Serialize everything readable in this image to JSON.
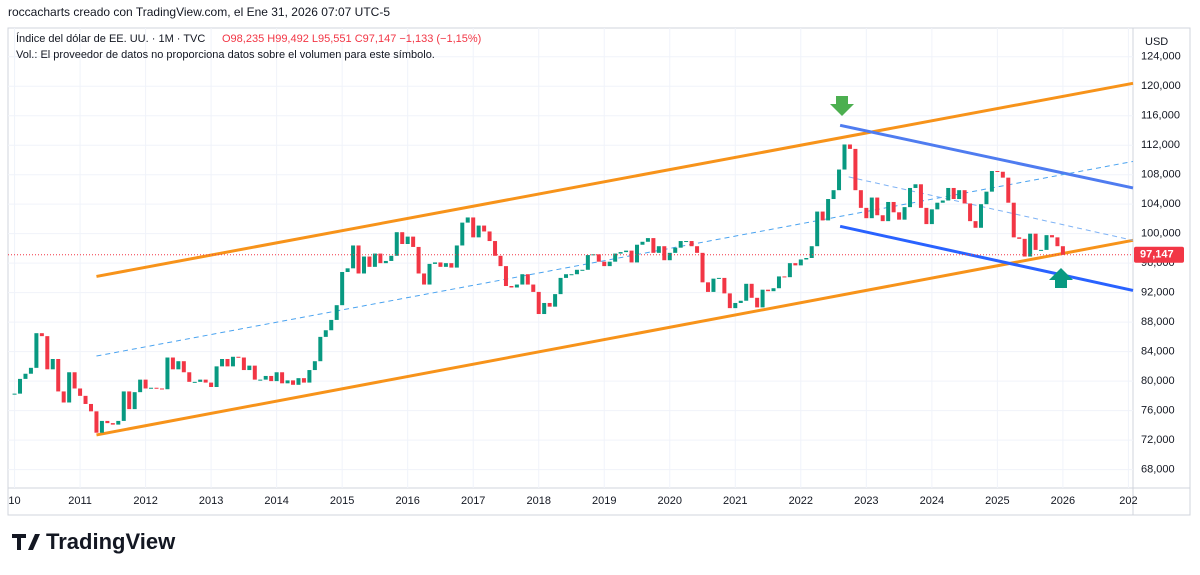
{
  "chart_data": {
    "type": "candlestick",
    "header": "roccacharts creado con TradingView.com, el Ene 31, 2026 07:07 UTC-5",
    "symbol": "Índice del dólar de EE. UU. · 1M · TVC",
    "ohlc_text": "O98,235 H99,492 L95,551 C97,147 −1,133 (−1,15%)",
    "volume_note": "Vol.: El proveedor de datos no proporciona datos sobre el volumen para este símbolo.",
    "currency": "USD",
    "brand": "TradingView",
    "last_price_label": "97,147",
    "up_color": "#089981",
    "down_color": "#f23645",
    "values": [
      78.3,
      80.3,
      81.0,
      81.8,
      86.5,
      86.1,
      81.6,
      83.0,
      78.6,
      77.1,
      81.2,
      79.0,
      78.0,
      76.9,
      75.9,
      73.0,
      74.6,
      74.3,
      74.1,
      74.6,
      78.6,
      76.2,
      78.5,
      80.2,
      79.0,
      79.1,
      79.0,
      78.9,
      83.2,
      81.6,
      82.7,
      81.2,
      79.9,
      79.9,
      80.2,
      79.8,
      79.2,
      82.0,
      83.0,
      82.0,
      83.3,
      83.2,
      81.5,
      82.1,
      80.2,
      80.2,
      80.7,
      80.0,
      81.2,
      79.7,
      80.1,
      79.5,
      80.4,
      79.8,
      81.5,
      82.7,
      86.0,
      86.9,
      88.3,
      90.3,
      94.8,
      95.3,
      98.4,
      94.6,
      96.9,
      95.5,
      97.3,
      96.0,
      96.3,
      97.0,
      100.2,
      98.6,
      99.6,
      98.2,
      94.6,
      93.1,
      95.9,
      96.1,
      95.5,
      96.0,
      95.4,
      98.4,
      101.5,
      102.2,
      99.5,
      101.1,
      100.3,
      99.0,
      97.0,
      95.6,
      92.9,
      92.7,
      93.1,
      94.5,
      93.1,
      92.1,
      89.1,
      90.6,
      90.1,
      91.8,
      94.0,
      94.5,
      94.5,
      95.1,
      95.1,
      97.1,
      97.2,
      96.2,
      95.6,
      96.2,
      97.3,
      97.5,
      97.7,
      96.1,
      98.5,
      98.9,
      99.4,
      97.4,
      98.3,
      96.4,
      97.4,
      98.1,
      99.0,
      99.0,
      98.3,
      97.4,
      93.4,
      92.1,
      93.9,
      94.0,
      91.9,
      89.9,
      90.6,
      90.9,
      93.2,
      91.3,
      90.0,
      92.4,
      92.2,
      92.6,
      94.2,
      94.1,
      96.0,
      95.7,
      96.5,
      96.7,
      98.3,
      103.0,
      101.8,
      104.7,
      105.9,
      108.7,
      112.1,
      111.5,
      105.9,
      103.5,
      102.1,
      104.9,
      102.5,
      101.7,
      104.3,
      102.9,
      101.9,
      103.6,
      106.2,
      106.7,
      103.5,
      101.3,
      103.3,
      104.2,
      104.5,
      106.2,
      104.7,
      105.9,
      104.1,
      101.7,
      100.8,
      104.0,
      105.7,
      108.5,
      108.4,
      107.6,
      104.2,
      99.5,
      99.3,
      96.9,
      100.0,
      97.8,
      97.8,
      99.8,
      99.5,
      98.3,
      97.147
    ],
    "xlim": [
      2009.9,
      2027.07
    ],
    "xticks": [
      {
        "value": 2010,
        "label": "10"
      },
      2011,
      2012,
      2013,
      2014,
      2015,
      2016,
      2017,
      2018,
      2019,
      2020,
      2021,
      2022,
      2023,
      2024,
      2025,
      2026,
      {
        "value": 2027,
        "label": "202"
      }
    ],
    "ylim": [
      65.5,
      127.9
    ],
    "yticks": [
      {
        "value": 68,
        "label": "68,000"
      },
      {
        "value": 72,
        "label": "72,000"
      },
      {
        "value": 76,
        "label": "76,000"
      },
      {
        "value": 80,
        "label": "80,000"
      },
      {
        "value": 84,
        "label": "84,000"
      },
      {
        "value": 88,
        "label": "88,000"
      },
      {
        "value": 92,
        "label": "92,000"
      },
      {
        "value": 96,
        "label": "96,000"
      },
      {
        "value": 100,
        "label": "100,000"
      },
      {
        "value": 104,
        "label": "104,000"
      },
      {
        "value": 108,
        "label": "108,000"
      },
      {
        "value": 112,
        "label": "112,000"
      },
      {
        "value": 116,
        "label": "116,000"
      },
      {
        "value": 120,
        "label": "120,000"
      },
      {
        "value": 124,
        "label": "124,000"
      }
    ],
    "grid": true,
    "drawings": [
      {
        "color": "#f7931a",
        "style": "solid",
        "points": [
          [
            2011.25,
            94.2
          ],
          [
            2027.07,
            120.4
          ]
        ]
      },
      {
        "color": "#f7931a",
        "style": "solid",
        "points": [
          [
            2011.25,
            72.7
          ],
          [
            2027.07,
            99.1
          ]
        ]
      },
      {
        "color": "#4f7cf0",
        "style": "solid",
        "points": [
          [
            2022.6,
            114.7
          ],
          [
            2027.07,
            106.2
          ]
        ]
      },
      {
        "color": "#2962ff",
        "style": "solid",
        "points": [
          [
            2022.6,
            101.0
          ],
          [
            2027.07,
            92.3
          ]
        ]
      },
      {
        "color": "#4aa3f0",
        "style": "dashed",
        "points": [
          [
            2011.25,
            83.4
          ],
          [
            2027.07,
            109.8
          ]
        ]
      },
      {
        "color": "#7fb3f5",
        "style": "dashed",
        "points": [
          [
            2022.73,
            107.7
          ],
          [
            2027.07,
            99.1
          ]
        ]
      }
    ]
  }
}
